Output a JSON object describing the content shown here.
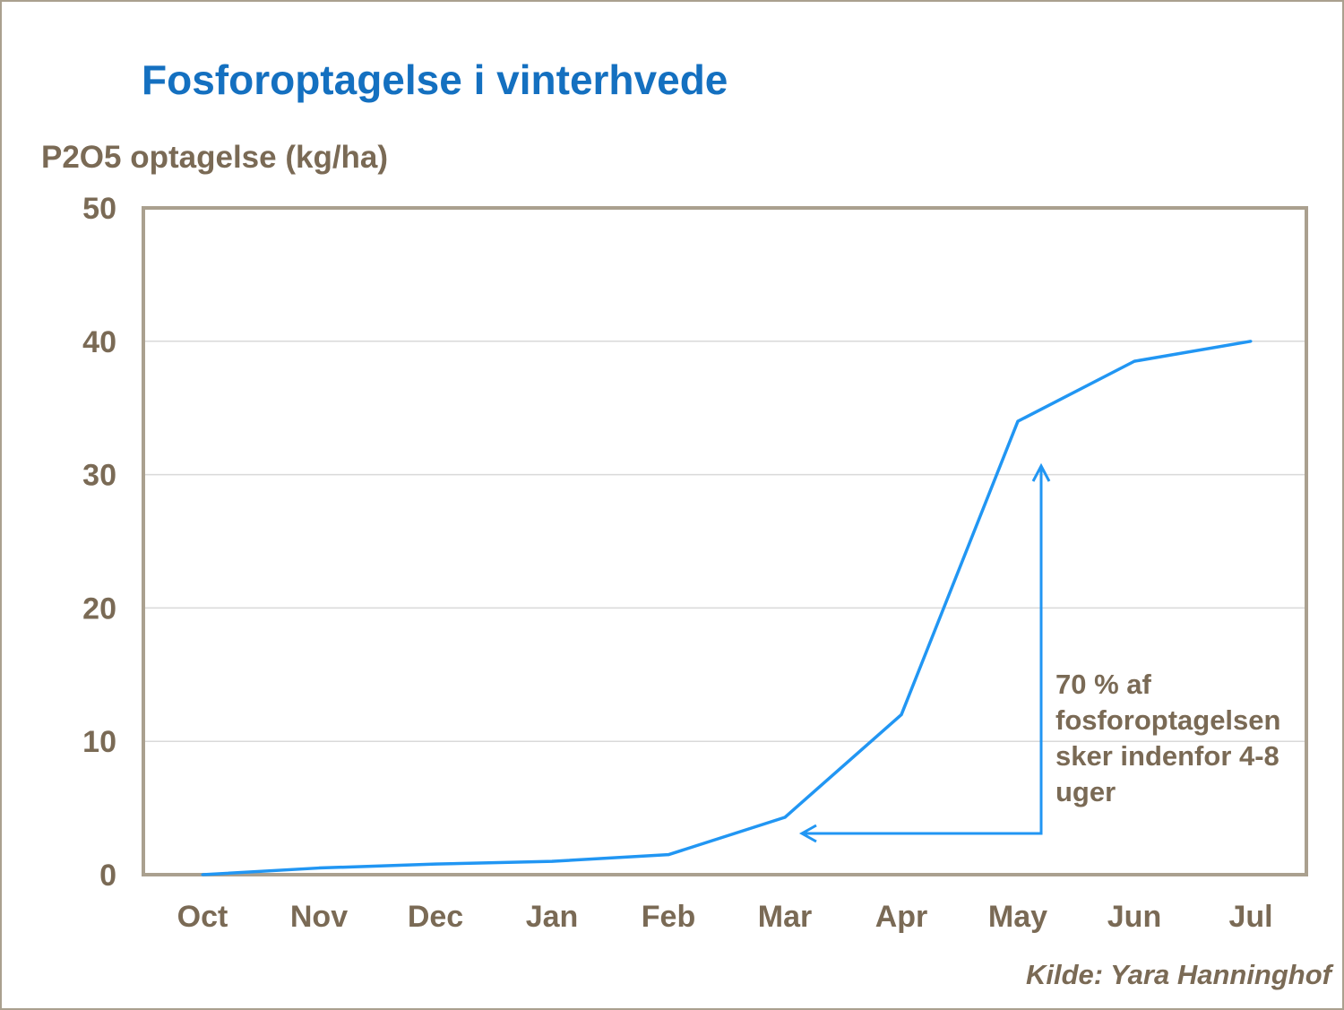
{
  "chart_data": {
    "type": "line",
    "title": "Fosforoptagelse i vinterhvede",
    "ylabel": "P2O5 optagelse (kg/ha)",
    "xlabel": "",
    "categories": [
      "Oct",
      "Nov",
      "Dec",
      "Jan",
      "Feb",
      "Mar",
      "Apr",
      "May",
      "Jun",
      "Jul"
    ],
    "series": [
      {
        "values": [
          0,
          0.5,
          0.8,
          1.0,
          1.5,
          4.3,
          12,
          34,
          38.5,
          40
        ]
      }
    ],
    "ylim": [
      0,
      50
    ],
    "yticks": [
      "0",
      "10",
      "20",
      "30",
      "40",
      "50"
    ],
    "grid": true,
    "annotation": "70 % af\nfosforoptagelsen\nsker indenfor 4-8\nuger",
    "source": "Kilde:  Yara Hanninghof",
    "colors": {
      "line": "#2196f3",
      "title": "#1470c0",
      "text": "#7a6a55",
      "frame": "#aaa08f",
      "grid": "#d9d9d9"
    }
  }
}
